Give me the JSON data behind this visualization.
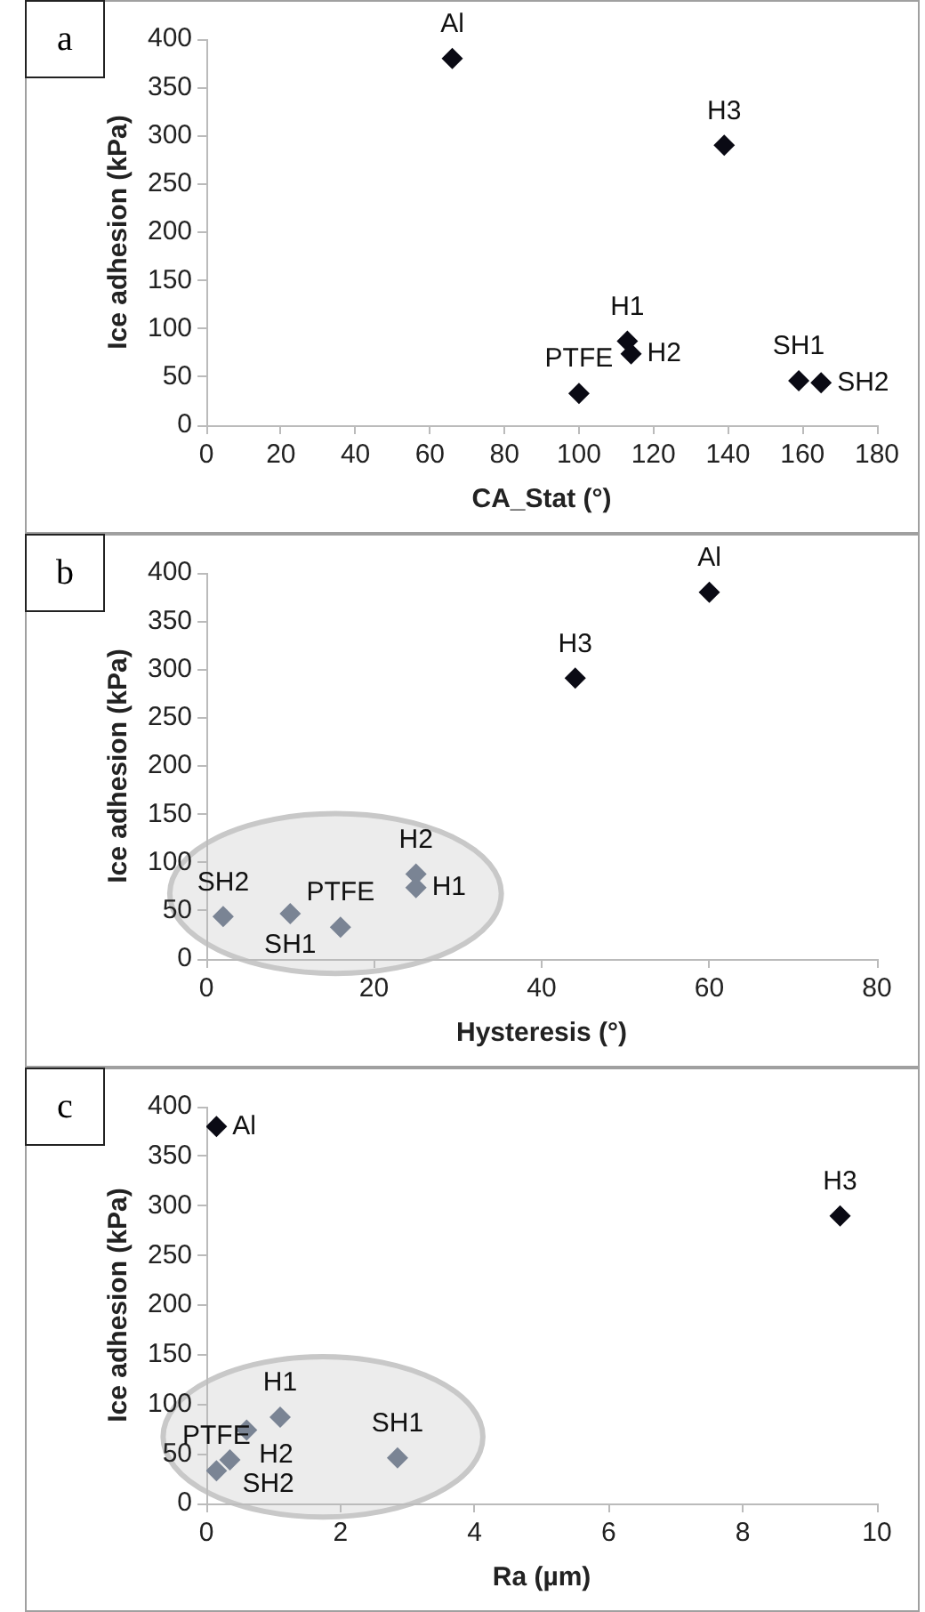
{
  "chart_data": [
    {
      "type": "scatter",
      "xlabel": "CA_Stat (°)",
      "ylabel": "Ice adhesion (kPa)",
      "marker": "diamond",
      "series": [
        {
          "color": "#0a0a14",
          "x": [
            66,
            139,
            113,
            114,
            100,
            159,
            165
          ],
          "values": [
            380,
            290,
            87,
            74,
            33,
            46,
            44
          ]
        }
      ],
      "xlim": [
        0,
        180
      ],
      "xticks": [
        0,
        20,
        40,
        60,
        80,
        100,
        120,
        140,
        160,
        180
      ],
      "ylim": [
        0,
        400
      ],
      "yticks": [
        0,
        50,
        100,
        150,
        200,
        250,
        300,
        350,
        400
      ],
      "annotations": [
        "a",
        {
          "text": "Al",
          "x": 66,
          "y": 380
        },
        {
          "text": "H3",
          "x": 139,
          "y": 290
        },
        {
          "text": "H1",
          "x": 113,
          "y": 87
        },
        {
          "text": "H2",
          "x": 114,
          "y": 74
        },
        {
          "text": "PTFE",
          "x": 100,
          "y": 33
        },
        {
          "text": "SH1",
          "x": 159,
          "y": 46
        },
        {
          "text": "SH2",
          "x": 165,
          "y": 44
        }
      ]
    },
    {
      "type": "scatter",
      "xlabel": "Hysteresis (°)",
      "ylabel": "Ice adhesion (kPa)",
      "marker": "diamond",
      "series": [
        {
          "color": "#0a0a14",
          "x": [
            60,
            44
          ],
          "values": [
            380,
            291
          ]
        },
        {
          "color": "#7a8494",
          "x": [
            25,
            25,
            16,
            10,
            2
          ],
          "values": [
            88,
            74,
            33,
            47,
            44
          ]
        }
      ],
      "xlim": [
        0,
        80
      ],
      "xticks": [
        0,
        20,
        40,
        60,
        80
      ],
      "ylim": [
        0,
        400
      ],
      "yticks": [
        0,
        50,
        100,
        150,
        200,
        250,
        300,
        350,
        400
      ],
      "annotations": [
        "b",
        {
          "text": "Al",
          "x": 60,
          "y": 380
        },
        {
          "text": "H3",
          "x": 44,
          "y": 291
        },
        {
          "text": "H2",
          "x": 25,
          "y": 88
        },
        {
          "text": "H1",
          "x": 25,
          "y": 74
        },
        {
          "text": "PTFE",
          "x": 16,
          "y": 33
        },
        {
          "text": "SH1",
          "x": 10,
          "y": 47
        },
        {
          "text": "SH2",
          "x": 2,
          "y": 44
        }
      ]
    },
    {
      "type": "scatter",
      "xlabel": "Ra (µm)",
      "ylabel": "Ice adhesion (kPa)",
      "marker": "diamond",
      "series": [
        {
          "color": "#0a0a14",
          "x": [
            0.15,
            9.45
          ],
          "values": [
            380,
            290
          ]
        },
        {
          "color": "#7a8494",
          "x": [
            1.1,
            0.6,
            0.35,
            0.15,
            2.85
          ],
          "values": [
            87,
            74,
            44,
            33,
            46
          ]
        }
      ],
      "xlim": [
        0,
        10
      ],
      "xticks": [
        0,
        2,
        4,
        6,
        8,
        10
      ],
      "ylim": [
        0,
        400
      ],
      "yticks": [
        0,
        50,
        100,
        150,
        200,
        250,
        300,
        350,
        400
      ],
      "annotations": [
        "c",
        {
          "text": "Al",
          "x": 0.15,
          "y": 380
        },
        {
          "text": "H3",
          "x": 9.45,
          "y": 290
        },
        {
          "text": "H1",
          "x": 1.1,
          "y": 87
        },
        {
          "text": "H2",
          "x": 0.6,
          "y": 74
        },
        {
          "text": "SH2",
          "x": 0.35,
          "y": 44
        },
        {
          "text": "PTFE",
          "x": 0.15,
          "y": 33
        },
        {
          "text": "SH1",
          "x": 2.85,
          "y": 46
        }
      ]
    }
  ]
}
